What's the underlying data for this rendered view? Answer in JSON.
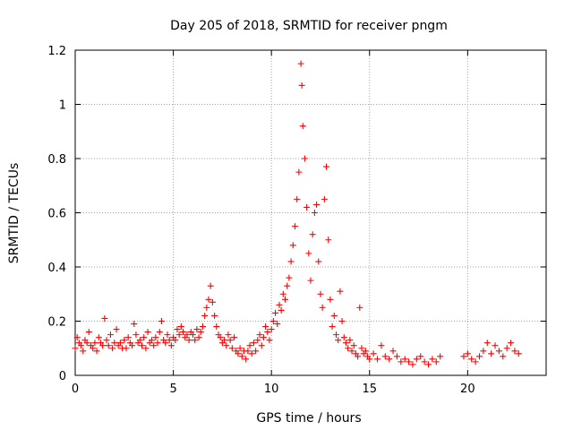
{
  "chart_data": {
    "type": "scatter",
    "title": "Day 205 of 2018, SRMTID for receiver pngm",
    "xlabel": "GPS time / hours",
    "ylabel": "SRMTID / TECUs",
    "xlim": [
      0,
      24
    ],
    "ylim": [
      0,
      1.2
    ],
    "xticks": [
      0,
      5,
      10,
      15,
      20
    ],
    "yticks": [
      0,
      0.2,
      0.4,
      0.6,
      0.8,
      1,
      1.2
    ],
    "xtick_labels": [
      "0",
      "5",
      "10",
      "15",
      "20"
    ],
    "ytick_labels": [
      "0",
      "0.2",
      "0.4",
      "0.6",
      "0.8",
      "1",
      "1.2"
    ],
    "grid": true,
    "marker": "+",
    "series": [
      {
        "name": "SRMTID",
        "color": "#ff0000",
        "segments": [
          [
            0.0,
            0.1
          ],
          [
            0.1,
            0.14
          ],
          [
            0.2,
            0.12
          ],
          [
            0.3,
            0.11
          ],
          [
            0.4,
            0.09
          ],
          [
            0.5,
            0.13
          ],
          [
            0.6,
            0.12
          ],
          [
            0.7,
            0.16
          ],
          [
            0.8,
            0.11
          ],
          [
            0.9,
            0.1
          ],
          [
            1.0,
            0.12
          ],
          [
            1.1,
            0.09
          ],
          [
            1.2,
            0.14
          ],
          [
            1.3,
            0.12
          ],
          [
            1.4,
            0.11
          ],
          [
            1.5,
            0.21
          ],
          [
            1.6,
            0.13
          ],
          [
            1.7,
            0.11
          ],
          [
            1.8,
            0.15
          ],
          [
            1.9,
            0.1
          ],
          [
            2.0,
            0.12
          ],
          [
            2.1,
            0.17
          ],
          [
            2.2,
            0.11
          ],
          [
            2.3,
            0.12
          ],
          [
            2.4,
            0.1
          ],
          [
            2.5,
            0.13
          ],
          [
            2.6,
            0.1
          ],
          [
            2.7,
            0.14
          ],
          [
            2.8,
            0.12
          ],
          [
            2.9,
            0.11
          ],
          [
            3.0,
            0.19
          ],
          [
            3.1,
            0.15
          ],
          [
            3.2,
            0.12
          ],
          [
            3.3,
            0.13
          ],
          [
            3.4,
            0.11
          ],
          [
            3.5,
            0.14
          ],
          [
            3.6,
            0.1
          ],
          [
            3.7,
            0.16
          ],
          [
            3.8,
            0.12
          ],
          [
            3.9,
            0.13
          ],
          [
            4.0,
            0.11
          ],
          [
            4.1,
            0.14
          ],
          [
            4.2,
            0.12
          ],
          [
            4.3,
            0.16
          ],
          [
            4.4,
            0.2
          ],
          [
            4.5,
            0.13
          ],
          [
            4.6,
            0.12
          ],
          [
            4.7,
            0.15
          ],
          [
            4.8,
            0.13
          ],
          [
            4.9,
            0.11
          ],
          [
            5.0,
            0.14
          ],
          [
            5.1,
            0.13
          ],
          [
            5.2,
            0.17
          ],
          [
            5.3,
            0.15
          ],
          [
            5.4,
            0.18
          ],
          [
            5.5,
            0.16
          ],
          [
            5.6,
            0.14
          ],
          [
            5.7,
            0.15
          ],
          [
            5.8,
            0.13
          ],
          [
            5.9,
            0.16
          ],
          [
            6.0,
            0.15
          ],
          [
            6.1,
            0.13
          ],
          [
            6.2,
            0.17
          ],
          [
            6.3,
            0.14
          ],
          [
            6.4,
            0.16
          ],
          [
            6.5,
            0.18
          ],
          [
            6.6,
            0.22
          ],
          [
            6.7,
            0.25
          ],
          [
            6.8,
            0.28
          ],
          [
            6.9,
            0.33
          ],
          [
            7.0,
            0.27
          ],
          [
            7.1,
            0.22
          ],
          [
            7.2,
            0.18
          ],
          [
            7.3,
            0.15
          ],
          [
            7.4,
            0.14
          ],
          [
            7.5,
            0.12
          ],
          [
            7.6,
            0.13
          ],
          [
            7.7,
            0.11
          ],
          [
            7.8,
            0.15
          ],
          [
            7.9,
            0.13
          ],
          [
            8.0,
            0.1
          ],
          [
            8.1,
            0.14
          ],
          [
            8.2,
            0.09
          ],
          [
            8.3,
            0.08
          ],
          [
            8.4,
            0.1
          ],
          [
            8.5,
            0.07
          ],
          [
            8.6,
            0.09
          ],
          [
            8.7,
            0.06
          ],
          [
            8.8,
            0.09
          ],
          [
            8.9,
            0.11
          ],
          [
            9.0,
            0.08
          ],
          [
            9.1,
            0.12
          ],
          [
            9.2,
            0.09
          ],
          [
            9.3,
            0.13
          ],
          [
            9.4,
            0.15
          ],
          [
            9.5,
            0.11
          ],
          [
            9.6,
            0.14
          ],
          [
            9.7,
            0.18
          ],
          [
            9.8,
            0.16
          ],
          [
            9.9,
            0.13
          ],
          [
            10.0,
            0.17
          ],
          [
            10.1,
            0.2
          ],
          [
            10.2,
            0.23
          ],
          [
            10.3,
            0.19
          ],
          [
            10.4,
            0.26
          ],
          [
            10.5,
            0.24
          ],
          [
            10.6,
            0.3
          ],
          [
            10.7,
            0.28
          ],
          [
            10.8,
            0.33
          ],
          [
            10.9,
            0.36
          ],
          [
            11.0,
            0.42
          ],
          [
            11.1,
            0.48
          ],
          [
            11.2,
            0.55
          ],
          [
            11.3,
            0.65
          ],
          [
            11.4,
            0.75
          ],
          [
            11.5,
            1.15
          ],
          [
            11.55,
            1.07
          ],
          [
            11.6,
            0.92
          ],
          [
            11.7,
            0.8
          ],
          [
            11.8,
            0.62
          ],
          [
            11.9,
            0.45
          ],
          [
            12.0,
            0.35
          ],
          [
            12.1,
            0.52
          ],
          [
            12.2,
            0.6
          ],
          [
            12.3,
            0.63
          ],
          [
            12.4,
            0.42
          ],
          [
            12.5,
            0.3
          ],
          [
            12.6,
            0.25
          ],
          [
            12.7,
            0.65
          ],
          [
            12.8,
            0.77
          ],
          [
            12.9,
            0.5
          ],
          [
            13.0,
            0.28
          ],
          [
            13.1,
            0.18
          ],
          [
            13.2,
            0.22
          ],
          [
            13.3,
            0.15
          ],
          [
            13.4,
            0.13
          ],
          [
            13.5,
            0.31
          ],
          [
            13.6,
            0.2
          ],
          [
            13.7,
            0.14
          ],
          [
            13.8,
            0.12
          ],
          [
            13.9,
            0.1
          ],
          [
            14.0,
            0.13
          ],
          [
            14.1,
            0.09
          ],
          [
            14.2,
            0.11
          ],
          [
            14.3,
            0.08
          ],
          [
            14.4,
            0.07
          ],
          [
            14.5,
            0.25
          ],
          [
            14.6,
            0.1
          ],
          [
            14.7,
            0.08
          ],
          [
            14.8,
            0.09
          ],
          [
            14.9,
            0.07
          ],
          [
            15.0,
            0.06
          ],
          [
            15.2,
            0.08
          ],
          [
            15.4,
            0.06
          ],
          [
            15.6,
            0.11
          ],
          [
            15.8,
            0.07
          ],
          [
            16.0,
            0.06
          ],
          [
            16.2,
            0.09
          ],
          [
            16.4,
            0.07
          ],
          [
            16.6,
            0.05
          ],
          [
            16.8,
            0.06
          ],
          [
            17.0,
            0.05
          ],
          [
            17.2,
            0.04
          ],
          [
            17.4,
            0.06
          ],
          [
            17.6,
            0.07
          ],
          [
            17.8,
            0.05
          ],
          [
            18.0,
            0.04
          ],
          [
            18.2,
            0.06
          ],
          [
            18.4,
            0.05
          ],
          [
            18.6,
            0.07
          ],
          [
            19.8,
            0.07
          ],
          [
            20.0,
            0.08
          ],
          [
            20.2,
            0.06
          ],
          [
            20.4,
            0.05
          ],
          [
            20.6,
            0.07
          ],
          [
            20.8,
            0.09
          ],
          [
            21.0,
            0.12
          ],
          [
            21.2,
            0.08
          ],
          [
            21.4,
            0.11
          ],
          [
            21.6,
            0.09
          ],
          [
            21.8,
            0.07
          ],
          [
            22.0,
            0.1
          ],
          [
            22.2,
            0.12
          ],
          [
            22.4,
            0.09
          ],
          [
            22.6,
            0.08
          ]
        ]
      }
    ]
  }
}
